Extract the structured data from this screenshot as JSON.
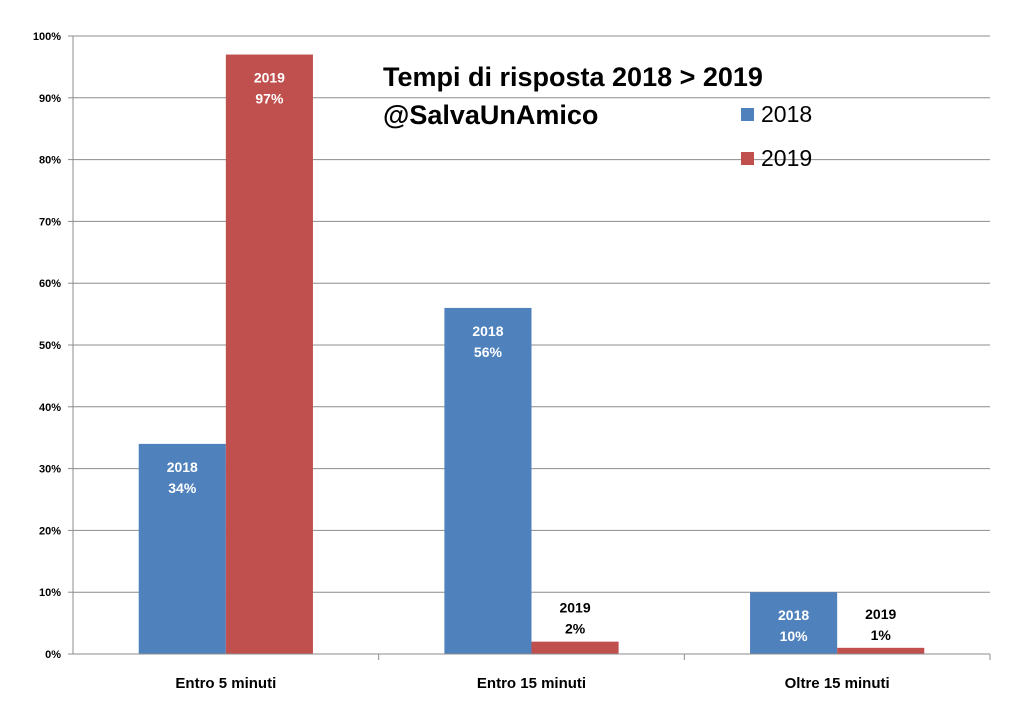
{
  "chart_data": {
    "type": "bar",
    "title": "Tempi di risposta 2018 > 2019",
    "subtitle": "@SalvaUnAmico",
    "categories": [
      "Entro 5 minuti",
      "Entro 15 minuti",
      "Oltre 15 minuti"
    ],
    "series": [
      {
        "name": "2018",
        "values": [
          34,
          56,
          10
        ],
        "color": "#4F81BD",
        "labels": [
          [
            "2018",
            "34%"
          ],
          [
            "2018",
            "56%"
          ],
          [
            "2018",
            "10%"
          ]
        ]
      },
      {
        "name": "2019",
        "values": [
          97,
          2,
          1
        ],
        "color": "#C0504D",
        "labels": [
          [
            "2019",
            "97%"
          ],
          [
            "2019",
            "2%"
          ],
          [
            "2019",
            "1%"
          ]
        ]
      }
    ],
    "ylim": [
      0,
      100
    ],
    "yticks": [
      "0%",
      "10%",
      "20%",
      "30%",
      "40%",
      "50%",
      "60%",
      "70%",
      "80%",
      "90%",
      "100%"
    ],
    "xlabel": "",
    "ylabel": "",
    "grid": true,
    "legend": "top-right"
  }
}
